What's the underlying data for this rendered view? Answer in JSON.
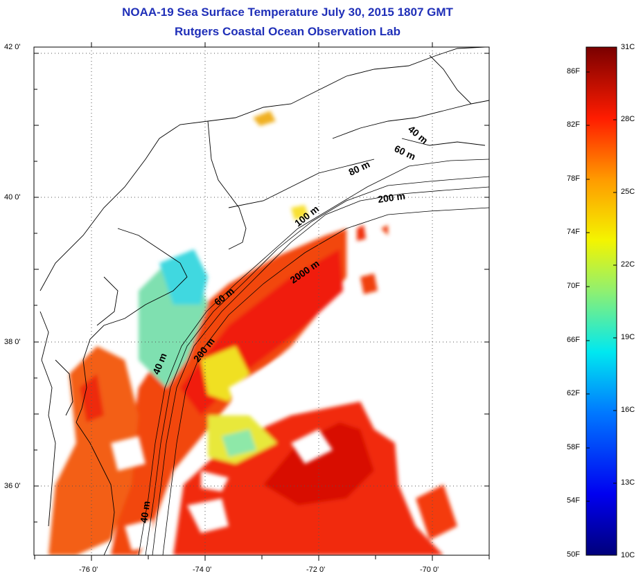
{
  "title": "NOAA-19 Sea Surface Temperature July 30, 2015 1807 GMT",
  "subtitle": "Rutgers Coastal Ocean Observation Lab",
  "map": {
    "latitude_labels": [
      "42 0'",
      "40 0'",
      "38 0'",
      "36 0'"
    ],
    "longitude_labels": [
      "-76 0'",
      "-74 0'",
      "-72 0'",
      "-70 0'"
    ],
    "isobath_labels": [
      "40 m",
      "60 m",
      "80 m",
      "200 m",
      "100 m",
      "2000 m",
      "60 m",
      "40 m",
      "200 m",
      "40 m"
    ]
  },
  "colorbar": {
    "fahrenheit_labels": [
      "86F",
      "82F",
      "78F",
      "74F",
      "70F",
      "66F",
      "62F",
      "58F",
      "54F",
      "50F"
    ],
    "celsius_labels": [
      "31C",
      "28C",
      "25C",
      "22C",
      "19C",
      "16C",
      "13C",
      "10C"
    ],
    "colors": [
      "#000080",
      "#0000ff",
      "#0080ff",
      "#00ffff",
      "#80ff80",
      "#ffff00",
      "#ff8000",
      "#ff0000",
      "#800000"
    ]
  }
}
